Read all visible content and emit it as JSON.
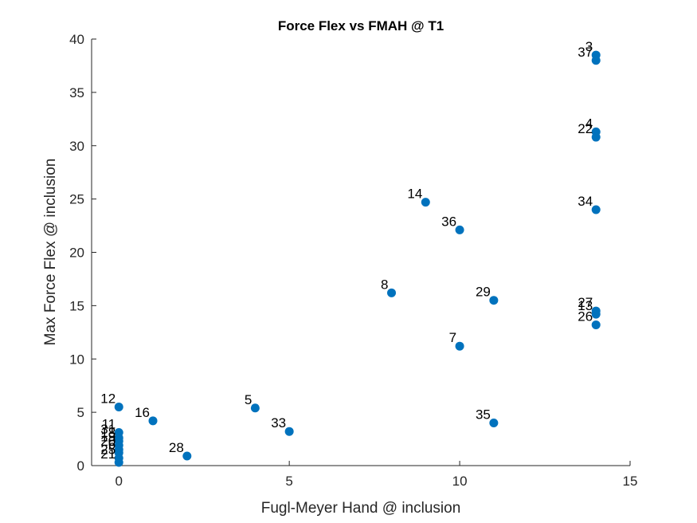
{
  "chart_data": {
    "type": "scatter",
    "title": "Force Flex vs FMAH @ T1",
    "xlabel": "Fugl-Meyer Hand @ inclusion",
    "ylabel": "Max Force Flex @ inclusion",
    "xlim": [
      -0.8,
      15
    ],
    "ylim": [
      0,
      40
    ],
    "xticks": [
      0,
      5,
      10,
      15
    ],
    "yticks": [
      0,
      5,
      10,
      15,
      20,
      25,
      30,
      35,
      40
    ],
    "grid": false,
    "marker_color": "#0072BD",
    "points": [
      {
        "x": 14,
        "y": 38.5,
        "label": "3"
      },
      {
        "x": 14,
        "y": 38.0,
        "label": "37"
      },
      {
        "x": 14,
        "y": 31.3,
        "label": "4"
      },
      {
        "x": 14,
        "y": 30.8,
        "label": "22"
      },
      {
        "x": 9,
        "y": 24.7,
        "label": "14"
      },
      {
        "x": 14,
        "y": 24.0,
        "label": "34"
      },
      {
        "x": 10,
        "y": 22.1,
        "label": "36"
      },
      {
        "x": 8,
        "y": 16.2,
        "label": "8"
      },
      {
        "x": 11,
        "y": 15.5,
        "label": "29"
      },
      {
        "x": 14,
        "y": 14.5,
        "label": "27"
      },
      {
        "x": 14,
        "y": 14.2,
        "label": "13"
      },
      {
        "x": 14,
        "y": 13.2,
        "label": "26"
      },
      {
        "x": 10,
        "y": 11.2,
        "label": "7"
      },
      {
        "x": 0,
        "y": 5.5,
        "label": "12"
      },
      {
        "x": 4,
        "y": 5.4,
        "label": "5"
      },
      {
        "x": 1,
        "y": 4.2,
        "label": "16"
      },
      {
        "x": 11,
        "y": 4.0,
        "label": "35"
      },
      {
        "x": 5,
        "y": 3.2,
        "label": "33"
      },
      {
        "x": 0,
        "y": 3.1,
        "label": "11"
      },
      {
        "x": 0,
        "y": 2.6,
        "label": "31"
      },
      {
        "x": 0,
        "y": 2.3,
        "label": "18"
      },
      {
        "x": 0,
        "y": 1.9,
        "label": "19"
      },
      {
        "x": 0,
        "y": 1.5,
        "label": "20"
      },
      {
        "x": 0,
        "y": 1.2,
        "label": "6"
      },
      {
        "x": 2,
        "y": 0.9,
        "label": "28"
      },
      {
        "x": 0,
        "y": 0.7,
        "label": "25"
      },
      {
        "x": 0,
        "y": 0.3,
        "label": "21"
      }
    ]
  }
}
